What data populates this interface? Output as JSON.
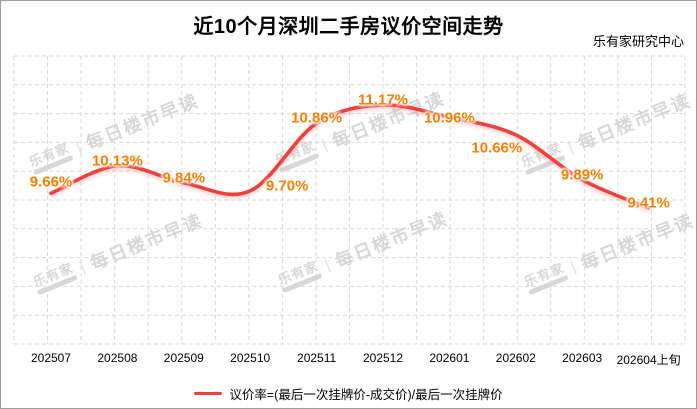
{
  "chart_data": {
    "type": "line",
    "title": "近10个月深圳二手房议价空间走势",
    "source": "乐有家研究中心",
    "categories": [
      "202507",
      "202508",
      "202509",
      "202510",
      "202511",
      "202512",
      "202601",
      "202602",
      "202603",
      "202604上旬"
    ],
    "series": [
      {
        "name": "议价率=(最后一次挂牌价-成交价)/最后一次挂牌价",
        "values": [
          9.66,
          10.13,
          9.84,
          9.7,
          10.86,
          11.17,
          10.96,
          10.66,
          9.89,
          9.41
        ]
      }
    ],
    "data_labels": [
      "9.66%",
      "10.13%",
      "9.84%",
      "9.70%",
      "10.86%",
      "11.17%",
      "10.96%",
      "10.66%",
      "9.89%",
      "9.41%"
    ],
    "xlabel": "",
    "ylabel": "",
    "ylim": [
      7.08,
      12.01
    ],
    "grid": true,
    "smooth": true,
    "legend_position": "bottom",
    "label_offsets": {
      "0": [
        0,
        -11
      ],
      "3": [
        37,
        -5
      ],
      "6": [
        0,
        1
      ],
      "7": [
        -19,
        13
      ]
    },
    "colors": {
      "line": "#ed4140",
      "data_label": "#ff7d00",
      "grid": "#d9d9d9",
      "text": "#000000",
      "watermark": "#a8a8a8",
      "border": "#9e9e9e"
    }
  },
  "watermark": {
    "brand": "乐有家",
    "separator": "|",
    "text": "每日楼市早读"
  }
}
